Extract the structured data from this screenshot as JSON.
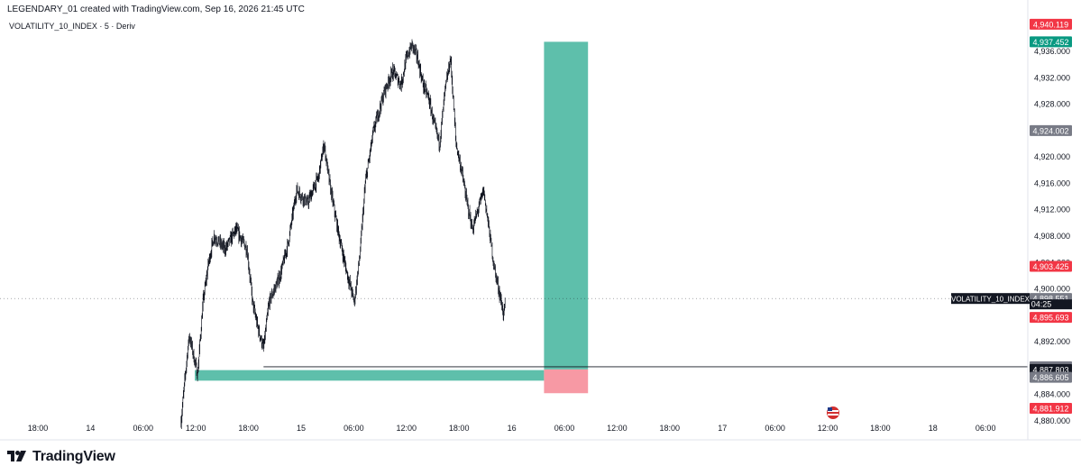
{
  "header": {
    "created_by": "LEGENDARY_01 created with TradingView.com, Sep 16, 2026 21:45 UTC",
    "symbol": "VOLATILITY_10_INDEX · 5 · Deriv"
  },
  "footer": {
    "brand": "TradingView"
  },
  "colors": {
    "candle": "#131722",
    "tp_zone": "#4db8a2",
    "sl_zone": "#f7949f",
    "badge_red": "#f23645",
    "badge_teal": "#089981",
    "badge_gray": "#787b86",
    "badge_dark": "#131722"
  },
  "chart_data": {
    "type": "candlestick",
    "timeframe": "5",
    "symbol": "VOLATILITY_10_INDEX",
    "ylim": [
      4878.0,
      4942.0
    ],
    "y_ticks": [
      "4,880.000",
      "4,884.000",
      "4,888.000",
      "4,892.000",
      "4,896.000",
      "4,900.000",
      "4,904.000",
      "4,908.000",
      "4,912.000",
      "4,916.000",
      "4,920.000",
      "4,924.000",
      "4,928.000",
      "4,932.000",
      "4,936.000"
    ],
    "x_ticks": [
      "18:00",
      "14",
      "06:00",
      "12:00",
      "18:00",
      "15",
      "06:00",
      "12:00",
      "18:00",
      "16",
      "06:00",
      "12:00",
      "18:00",
      "17",
      "06:00",
      "12:00",
      "18:00",
      "18",
      "06:00"
    ],
    "price_path": [
      {
        "t": "Sep 14 10:00",
        "v": 4880.0
      },
      {
        "t": "Sep 14 11:00",
        "v": 4889.0
      },
      {
        "t": "Sep 14 11:30",
        "v": 4893.0
      },
      {
        "t": "Sep 14 12:00",
        "v": 4891.0
      },
      {
        "t": "Sep 14 13:00",
        "v": 4887.0
      },
      {
        "t": "Sep 14 14:00",
        "v": 4898.0
      },
      {
        "t": "Sep 14 15:00",
        "v": 4904.0
      },
      {
        "t": "Sep 14 16:00",
        "v": 4908.0
      },
      {
        "t": "Sep 14 18:00",
        "v": 4906.0
      },
      {
        "t": "Sep 14 20:00",
        "v": 4909.0
      },
      {
        "t": "Sep 14 22:00",
        "v": 4906.0
      },
      {
        "t": "Sep 14 23:00",
        "v": 4898.0
      },
      {
        "t": "Sep 15 00:00",
        "v": 4894.0
      },
      {
        "t": "Sep 15 01:00",
        "v": 4891.0
      },
      {
        "t": "Sep 15 02:00",
        "v": 4898.0
      },
      {
        "t": "Sep 15 04:00",
        "v": 4902.0
      },
      {
        "t": "Sep 15 05:30",
        "v": 4907.0
      },
      {
        "t": "Sep 15 07:00",
        "v": 4915.0
      },
      {
        "t": "Sep 15 09:00",
        "v": 4913.0
      },
      {
        "t": "Sep 15 11:00",
        "v": 4917.0
      },
      {
        "t": "Sep 15 12:00",
        "v": 4922.0
      },
      {
        "t": "Sep 15 13:00",
        "v": 4916.0
      },
      {
        "t": "Sep 15 14:30",
        "v": 4909.0
      },
      {
        "t": "Sep 15 16:00",
        "v": 4903.0
      },
      {
        "t": "Sep 15 17:30",
        "v": 4898.0
      },
      {
        "t": "Sep 15 18:30",
        "v": 4905.0
      },
      {
        "t": "Sep 15 19:30",
        "v": 4916.0
      },
      {
        "t": "Sep 15 21:00",
        "v": 4924.0
      },
      {
        "t": "Sep 15 23:00",
        "v": 4930.0
      },
      {
        "t": "Sep 16 00:30",
        "v": 4933.0
      },
      {
        "t": "Sep 16 02:00",
        "v": 4931.0
      },
      {
        "t": "Sep 16 03:00",
        "v": 4935.0
      },
      {
        "t": "Sep 16 04:00",
        "v": 4937.0
      },
      {
        "t": "Sep 16 05:00",
        "v": 4935.0
      },
      {
        "t": "Sep 16 06:00",
        "v": 4931.0
      },
      {
        "t": "Sep 16 07:00",
        "v": 4929.0
      },
      {
        "t": "Sep 16 08:00",
        "v": 4925.0
      },
      {
        "t": "Sep 16 09:00",
        "v": 4922.0
      },
      {
        "t": "Sep 16 10:00",
        "v": 4930.0
      },
      {
        "t": "Sep 16 11:00",
        "v": 4935.0
      },
      {
        "t": "Sep 16 12:00",
        "v": 4922.0
      },
      {
        "t": "Sep 16 13:00",
        "v": 4918.0
      },
      {
        "t": "Sep 16 14:00",
        "v": 4913.0
      },
      {
        "t": "Sep 16 15:00",
        "v": 4909.0
      },
      {
        "t": "Sep 16 16:00",
        "v": 4912.0
      },
      {
        "t": "Sep 16 17:00",
        "v": 4915.0
      },
      {
        "t": "Sep 16 18:00",
        "v": 4909.0
      },
      {
        "t": "Sep 16 19:00",
        "v": 4903.0
      },
      {
        "t": "Sep 16 20:00",
        "v": 4899.0
      },
      {
        "t": "Sep 16 20:40",
        "v": 4896.0
      },
      {
        "t": "Sep 16 21:00",
        "v": 4898.5
      }
    ],
    "support_line": {
      "from": "Sep 15 01:00",
      "to": "right_edge",
      "price": 4888.207
    },
    "zones": [
      {
        "kind": "demand",
        "from": "Sep 14 12:30",
        "to": "Sep 17 04:00",
        "price_top": 4887.7,
        "price_bottom": 4886.1
      },
      {
        "kind": "take_profit",
        "from": "Sep 17 04:00",
        "to": "Sep 17 12:00",
        "price_top": 4937.452,
        "price_bottom": 4887.803
      },
      {
        "kind": "stop_loss",
        "from": "Sep 17 04:00",
        "to": "Sep 17 12:00",
        "price_top": 4887.803,
        "price_bottom": 4884.2
      }
    ],
    "last_price": 4898.551,
    "countdown": "04:25",
    "symbol_tag": "VOLATILITY_10_INDEX",
    "price_badges": [
      {
        "label": "4,940.119",
        "price": 4940.119,
        "color": "red"
      },
      {
        "label": "4,937.452",
        "price": 4937.452,
        "color": "teal"
      },
      {
        "label": "4,924.002",
        "price": 4924.002,
        "color": "gray"
      },
      {
        "label": "4,903.425",
        "price": 4903.425,
        "color": "red"
      },
      {
        "label": "4,898.551",
        "price": 4898.551,
        "color": "gray"
      },
      {
        "label": "4,895.693",
        "price": 4895.693,
        "color": "red"
      },
      {
        "label": "4,888.207",
        "price": 4888.207,
        "color": "gray"
      },
      {
        "label": "4,887.803",
        "price": 4887.803,
        "color": "dark"
      },
      {
        "label": "4,886.605",
        "price": 4886.605,
        "color": "gray"
      },
      {
        "label": "4,881.912",
        "price": 4881.912,
        "color": "red"
      }
    ]
  }
}
